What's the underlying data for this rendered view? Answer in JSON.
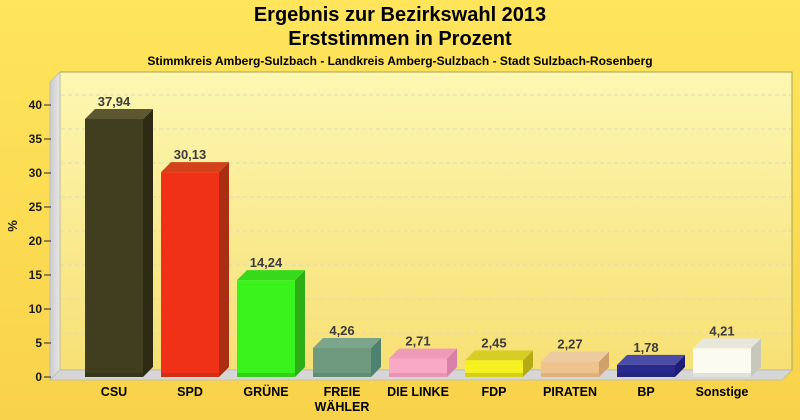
{
  "chart_data": {
    "type": "bar",
    "title": "Ergebnis zur Bezirkswahl 2013",
    "subtitle": "Erststimmen in Prozent",
    "caption": "Stimmkreis Amberg-Sulzbach - Landkreis Amberg-Sulzbach - Stadt Sulzbach-Rosenberg",
    "ylabel": "%",
    "xlabel": "",
    "ylim": [
      0,
      43
    ],
    "grid": "dashed-horizontal",
    "legend": "none",
    "style": "3d-bars",
    "yticks": [
      0,
      5,
      10,
      15,
      20,
      25,
      30,
      35,
      40
    ],
    "categories": [
      "CSU",
      "SPD",
      "GRÜNE",
      "FREIE\nWÄHLER",
      "DIE LINKE",
      "FDP",
      "PIRATEN",
      "BP",
      "Sonstige"
    ],
    "values": [
      37.94,
      30.13,
      14.24,
      4.26,
      2.71,
      2.45,
      2.27,
      1.78,
      4.21
    ],
    "value_labels": [
      "37,94",
      "30,13",
      "14,24",
      "4,26",
      "2,71",
      "2,45",
      "2,27",
      "1,78",
      "4,21"
    ],
    "bar_colors": [
      {
        "front": "#413e1f",
        "top": "#5a5732",
        "side": "#2e2b15"
      },
      {
        "front": "#f13018",
        "top": "#d2431b",
        "side": "#aa2f12"
      },
      {
        "front": "#3af31d",
        "top": "#35da1b",
        "side": "#2cae14"
      },
      {
        "front": "#6f9a7f",
        "top": "#7ba68b",
        "side": "#4f8170"
      },
      {
        "front": "#f9a9c5",
        "top": "#ef9ab9",
        "side": "#d780a8"
      },
      {
        "front": "#f6f222",
        "top": "#d6ce24",
        "side": "#b2ab16"
      },
      {
        "front": "#f0c28d",
        "top": "#edcba0",
        "side": "#cfa06a"
      },
      {
        "front": "#2a2a8e",
        "top": "#4b4ba8",
        "side": "#1f1f72"
      },
      {
        "front": "#fbfbf2",
        "top": "#e7e7db",
        "side": "#c7c7bb"
      }
    ],
    "colors": {
      "background_top": "#fee55c",
      "background_bottom": "#f8d24a",
      "wall_top": "#fdf7b2",
      "wall_bottom": "#f7e074",
      "wall_border": "#a3a35c",
      "side_wall_light": "#e6e6e6",
      "side_wall_dark": "#cccccc",
      "floor": "#d6d6d6",
      "floor_edge": "#b9b9b9",
      "grid": "#ddd9c3",
      "tick": "#444444",
      "tick_label": "#1a1a1a",
      "value_label": "#3c3c3c",
      "category_label": "#000000"
    }
  }
}
